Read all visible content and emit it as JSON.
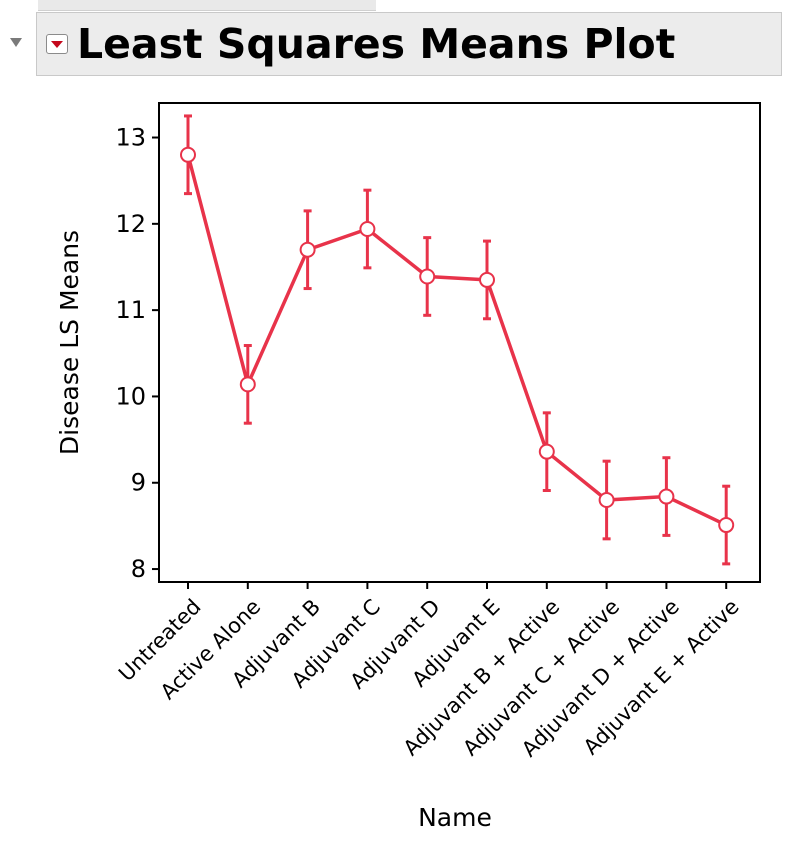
{
  "header": {
    "title": "Least Squares Means Plot"
  },
  "colors": {
    "series": "#e8334a",
    "frame": "#000000",
    "header_bg": "#ececec",
    "menu_arrow": "#c4081c"
  },
  "chart_data": {
    "type": "line",
    "xlabel": "Name",
    "ylabel": "Disease LS Means",
    "ylim": [
      7.85,
      13.4
    ],
    "yticks": [
      8,
      9,
      10,
      11,
      12,
      13
    ],
    "categories": [
      "Untreated",
      "Active Alone",
      "Adjuvant B",
      "Adjuvant C",
      "Adjuvant D",
      "Adjuvant E",
      "Adjuvant B + Active",
      "Adjuvant C + Active",
      "Adjuvant D + Active",
      "Adjuvant E + Active"
    ],
    "series": [
      {
        "values": [
          12.8,
          10.14,
          11.7,
          11.94,
          11.39,
          11.35,
          9.36,
          8.8,
          8.84,
          8.51
        ],
        "error_low": [
          12.35,
          9.69,
          11.25,
          11.49,
          10.94,
          10.9,
          8.91,
          8.35,
          8.39,
          8.06
        ],
        "error_high": [
          13.25,
          10.59,
          12.15,
          12.39,
          11.84,
          11.8,
          9.81,
          9.25,
          9.29,
          8.96
        ],
        "marker": "open-circle"
      }
    ],
    "grid": false,
    "legend": "none"
  }
}
